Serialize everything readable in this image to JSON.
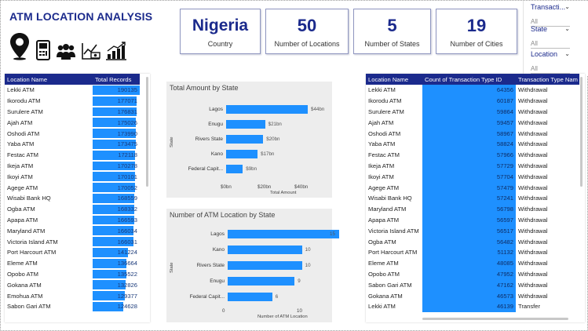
{
  "header": {
    "title": "ATM LOCATION ANALYSIS",
    "icons": [
      "location-pin-icon",
      "atm-machine-icon",
      "people-group-icon",
      "money-chart-icon",
      "growth-chart-icon"
    ]
  },
  "kpis": [
    {
      "value": "Nigeria",
      "label": "Country"
    },
    {
      "value": "50",
      "label": "Number of Locations"
    },
    {
      "value": "5",
      "label": "Number of States"
    },
    {
      "value": "19",
      "label": "Number of Cities"
    }
  ],
  "slicers": [
    {
      "label": "Transacti...",
      "value": "All"
    },
    {
      "label": "State",
      "value": "All"
    },
    {
      "label": "Location",
      "value": "All"
    }
  ],
  "left_table": {
    "headers": [
      "Location Name",
      "Total Records"
    ],
    "max": 190135,
    "rows": [
      {
        "name": "Lekki ATM",
        "display": "190135",
        "value": 190135
      },
      {
        "name": "Ikorodu ATM",
        "display": "177071",
        "value": 177071
      },
      {
        "name": "Surulere ATM",
        "display": "176831",
        "value": 176831
      },
      {
        "name": "Ajah ATM",
        "display": "175026",
        "value": 175026
      },
      {
        "name": "Oshodi ATM",
        "display": "173990",
        "value": 173990
      },
      {
        "name": "Yaba ATM",
        "display": "173475",
        "value": 173475
      },
      {
        "name": "Festac ATM",
        "display": "172118",
        "value": 172118
      },
      {
        "name": "Ikeja ATM",
        "display": "170278",
        "value": 170278
      },
      {
        "name": "Ikoyi ATM",
        "display": "170101",
        "value": 170101
      },
      {
        "name": "Agege ATM",
        "display": "170052",
        "value": 170052
      },
      {
        "name": "Wisabi Bank HQ",
        "display": "168559",
        "value": 168559
      },
      {
        "name": "Ogba ATM",
        "display": "168332",
        "value": 168332
      },
      {
        "name": "Apapa ATM",
        "display": "166593",
        "value": 166593
      },
      {
        "name": "Maryland ATM",
        "display": "166034",
        "value": 166034
      },
      {
        "name": "Victoria Island ATM",
        "display": "166031",
        "value": 166031
      },
      {
        "name": "Port Harcourt ATM",
        "display": "141224",
        "value": 141224
      },
      {
        "name": "Eleme ATM",
        "display": "136664",
        "value": 136664
      },
      {
        "name": "Opobo ATM",
        "display": "135522",
        "value": 135522
      },
      {
        "name": "Gokana ATM",
        "display": "132826",
        "value": 132826
      },
      {
        "name": "Emohua ATM",
        "display": "129377",
        "value": 129377
      },
      {
        "name": "Sabon Gari ATM",
        "display": "124628",
        "value": 124628
      }
    ]
  },
  "chart_data": [
    {
      "type": "bar",
      "title": "Total Amount by State",
      "ylabel": "State",
      "xlabel": "Total Amount",
      "categories": [
        "Lagos",
        "Enugu",
        "Rivers State",
        "Kano",
        "Federal Capit..."
      ],
      "values": [
        44,
        21,
        20,
        17,
        9
      ],
      "labels": [
        "$44bn",
        "$21bn",
        "$20bn",
        "$17bn",
        "$9bn"
      ],
      "ticks": [
        "$0bn",
        "$20bn",
        "$40bn"
      ],
      "xlim": [
        0,
        44
      ]
    },
    {
      "type": "bar",
      "title": "Number of ATM Location by State",
      "ylabel": "State",
      "xlabel": "Number of ATM Location",
      "categories": [
        "Lagos",
        "Kano",
        "Rivers State",
        "Enugu",
        "Federal Capit..."
      ],
      "values": [
        15,
        10,
        10,
        9,
        6
      ],
      "labels": [
        "15",
        "10",
        "10",
        "9",
        "6"
      ],
      "ticks": [
        "0",
        "10"
      ],
      "xlim": [
        0,
        15
      ]
    }
  ],
  "right_table": {
    "headers": [
      "Location Name",
      "Count of Transaction Type ID",
      "Transaction Type Nam"
    ],
    "rows": [
      {
        "name": "Lekki ATM",
        "count": "64356",
        "type": "Withdrawal"
      },
      {
        "name": "Ikorodu ATM",
        "count": "60187",
        "type": "Withdrawal"
      },
      {
        "name": "Surulere ATM",
        "count": "59864",
        "type": "Withdrawal"
      },
      {
        "name": "Ajah ATM",
        "count": "59457",
        "type": "Withdrawal"
      },
      {
        "name": "Oshodi ATM",
        "count": "58967",
        "type": "Withdrawal"
      },
      {
        "name": "Yaba ATM",
        "count": "58824",
        "type": "Withdrawal"
      },
      {
        "name": "Festac ATM",
        "count": "57966",
        "type": "Withdrawal"
      },
      {
        "name": "Ikeja ATM",
        "count": "57729",
        "type": "Withdrawal"
      },
      {
        "name": "Ikoyi ATM",
        "count": "57704",
        "type": "Withdrawal"
      },
      {
        "name": "Agege ATM",
        "count": "57479",
        "type": "Withdrawal"
      },
      {
        "name": "Wisabi Bank HQ",
        "count": "57241",
        "type": "Withdrawal"
      },
      {
        "name": "Maryland ATM",
        "count": "56798",
        "type": "Withdrawal"
      },
      {
        "name": "Apapa ATM",
        "count": "56597",
        "type": "Withdrawal"
      },
      {
        "name": "Victoria Island ATM",
        "count": "56517",
        "type": "Withdrawal"
      },
      {
        "name": "Ogba ATM",
        "count": "56482",
        "type": "Withdrawal"
      },
      {
        "name": "Port Harcourt ATM",
        "count": "51132",
        "type": "Withdrawal"
      },
      {
        "name": "Eleme ATM",
        "count": "48085",
        "type": "Withdrawal"
      },
      {
        "name": "Opobo ATM",
        "count": "47952",
        "type": "Withdrawal"
      },
      {
        "name": "Sabon Gari ATM",
        "count": "47162",
        "type": "Withdrawal"
      },
      {
        "name": "Gokana ATM",
        "count": "46573",
        "type": "Withdrawal"
      },
      {
        "name": "Lekki ATM",
        "count": "46139",
        "type": "Transfer"
      }
    ]
  },
  "colors": {
    "accent": "#1b2a8c",
    "bar": "#1e90ff",
    "panel": "#ededed"
  }
}
